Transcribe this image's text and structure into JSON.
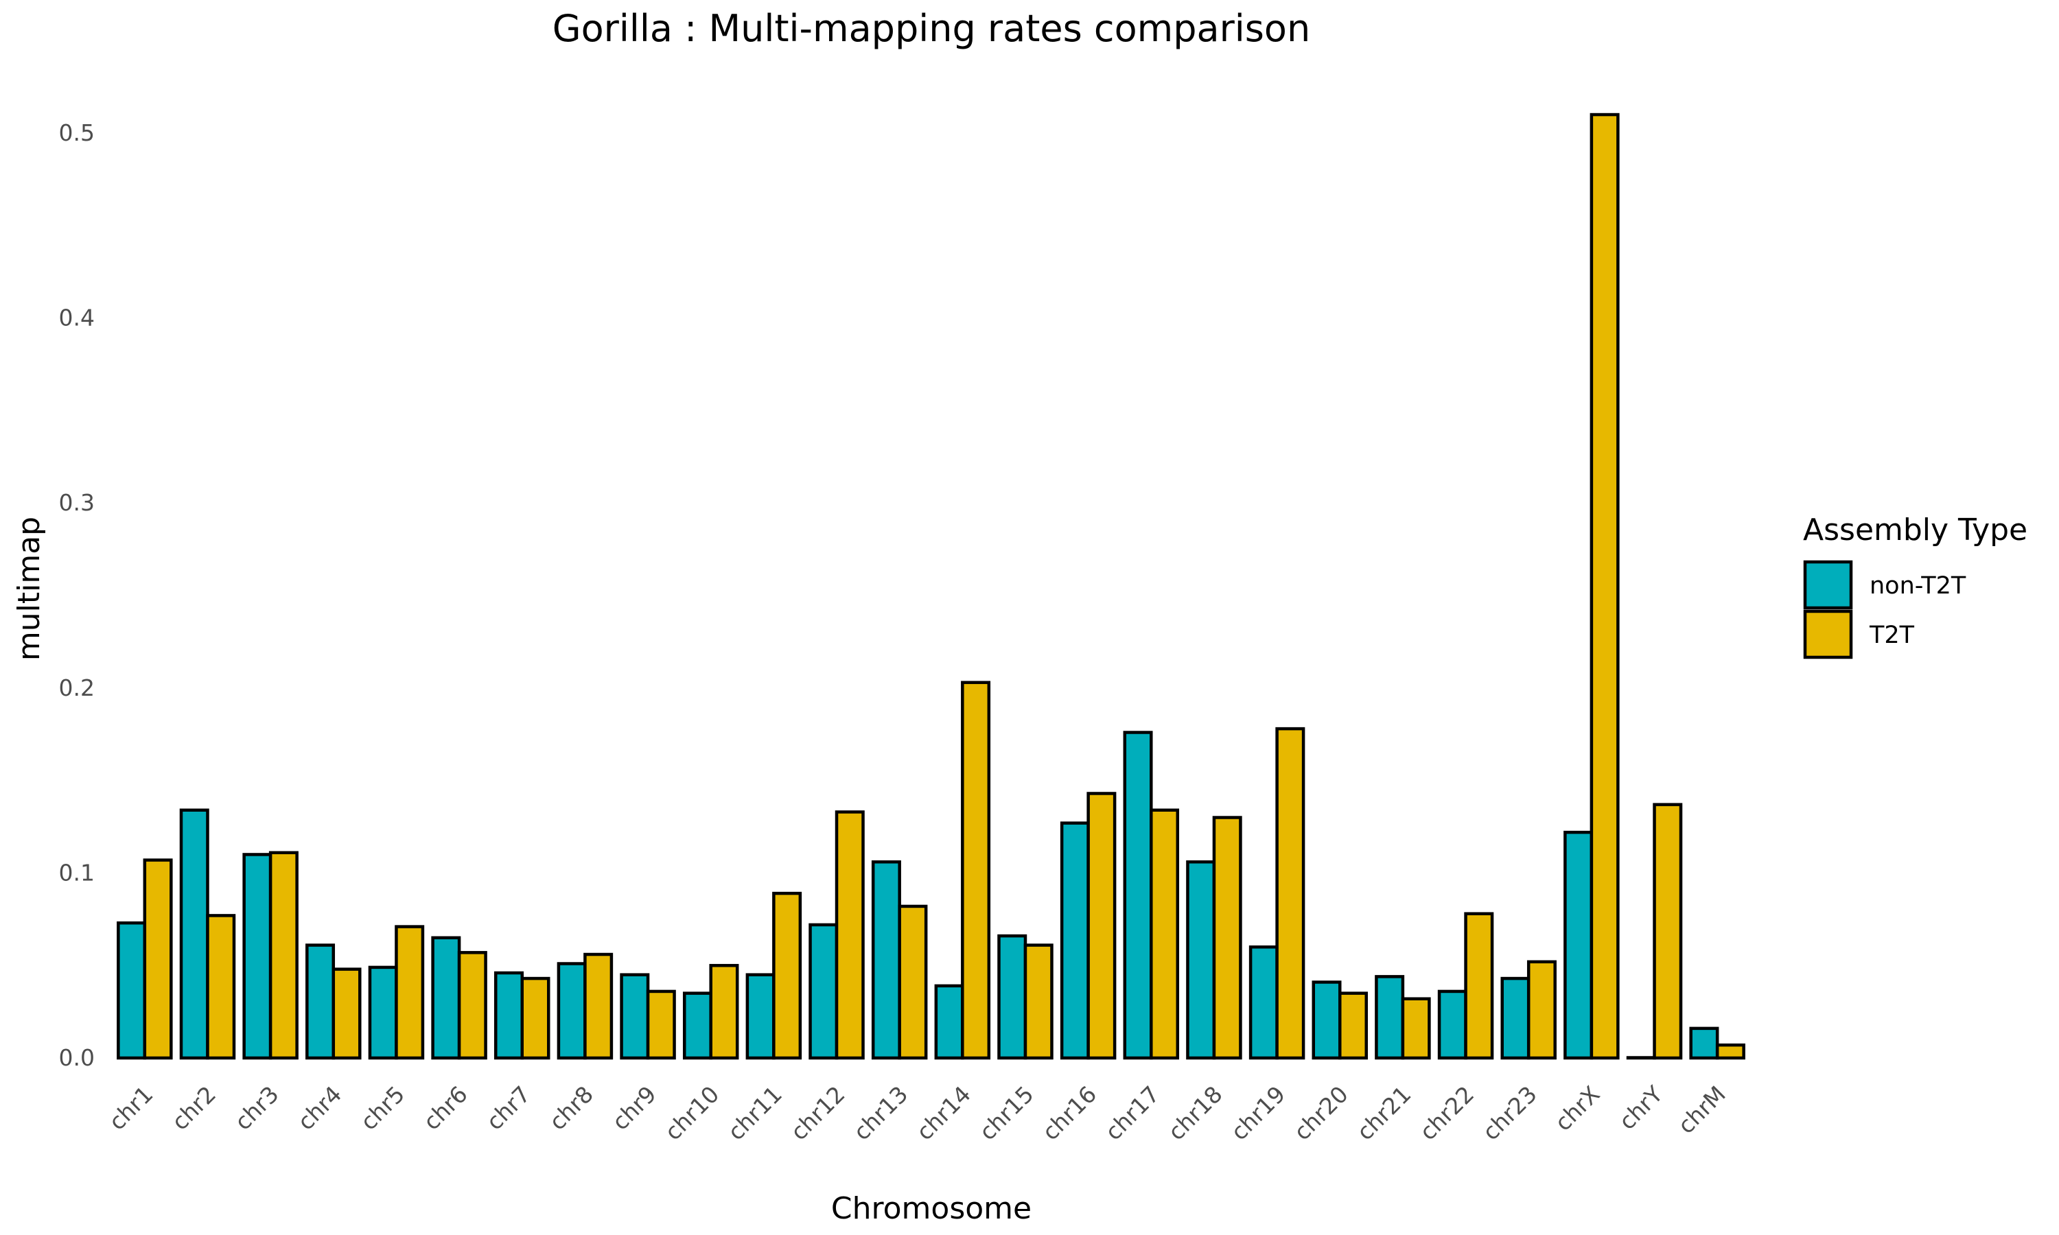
{
  "chart_data": {
    "type": "bar",
    "title": "Gorilla : Multi-mapping rates comparison",
    "xlabel": "Chromosome",
    "ylabel": "multimap",
    "ylim": [
      0,
      0.5
    ],
    "yticks": [
      "0.0",
      "0.1",
      "0.2",
      "0.3",
      "0.4",
      "0.5"
    ],
    "grid": false,
    "legend": {
      "title": "Assembly Type",
      "placement": "right"
    },
    "categories": [
      "chr1",
      "chr2",
      "chr3",
      "chr4",
      "chr5",
      "chr6",
      "chr7",
      "chr8",
      "chr9",
      "chr10",
      "chr11",
      "chr12",
      "chr13",
      "chr14",
      "chr15",
      "chr16",
      "chr17",
      "chr18",
      "chr19",
      "chr20",
      "chr21",
      "chr22",
      "chr23",
      "chrX",
      "chrY",
      "chrM"
    ],
    "series": [
      {
        "name": "non-T2T",
        "color": "#00AEBB",
        "values": [
          0.073,
          0.134,
          0.11,
          0.061,
          0.049,
          0.065,
          0.046,
          0.051,
          0.045,
          0.035,
          0.045,
          0.072,
          0.106,
          0.039,
          0.066,
          0.127,
          0.176,
          0.106,
          0.06,
          0.041,
          0.044,
          0.036,
          0.043,
          0.122,
          0.0,
          0.016
        ]
      },
      {
        "name": "T2T",
        "color": "#E7B800",
        "values": [
          0.107,
          0.077,
          0.111,
          0.048,
          0.071,
          0.057,
          0.043,
          0.056,
          0.036,
          0.05,
          0.089,
          0.133,
          0.082,
          0.203,
          0.061,
          0.143,
          0.134,
          0.13,
          0.178,
          0.035,
          0.032,
          0.078,
          0.052,
          0.51,
          0.137,
          0.007
        ]
      }
    ]
  }
}
